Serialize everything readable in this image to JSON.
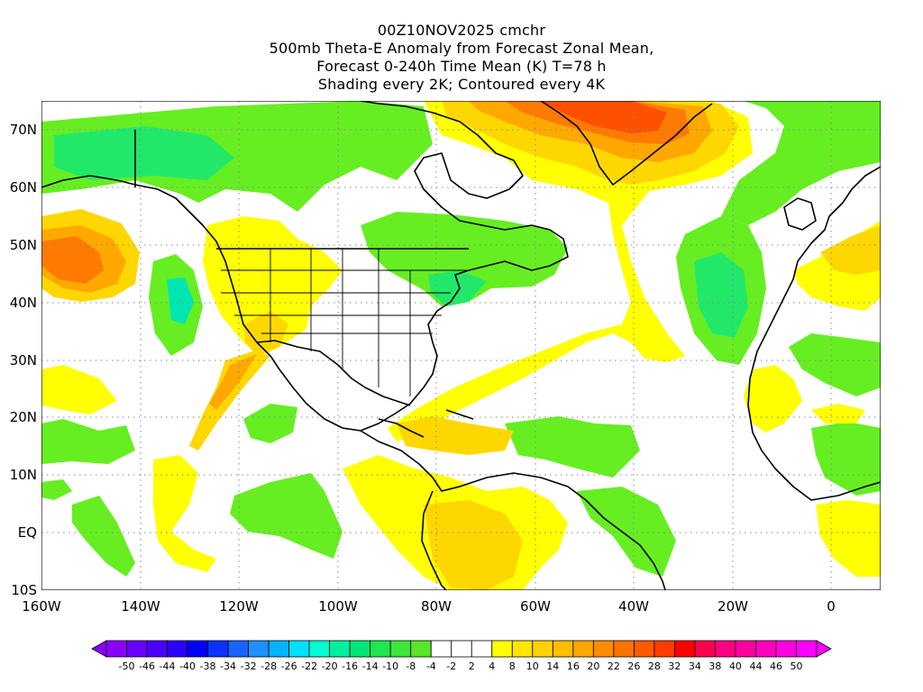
{
  "title": {
    "line1": "00Z10NOV2025 cmchr",
    "line2": "500mb Theta-E Anomaly from Forecast Zonal Mean,",
    "line3": "Forecast 0-240h Time Mean (K) T=78 h",
    "line4": "Shading every 2K; Contoured every 4K"
  },
  "map": {
    "lat_labels": [
      "70N",
      "60N",
      "50N",
      "40N",
      "30N",
      "20N",
      "10N",
      "EQ",
      "10S"
    ],
    "lon_labels": [
      "160W",
      "140W",
      "120W",
      "100W",
      "80W",
      "60W",
      "40W",
      "20W",
      "0"
    ],
    "lon_range": [
      -160,
      10
    ],
    "lat_range": [
      -10,
      75
    ],
    "grid": "dotted"
  },
  "colorbar": {
    "labels": [
      "-50",
      "-46",
      "-44",
      "-40",
      "-38",
      "-34",
      "-32",
      "-28",
      "-26",
      "-22",
      "-20",
      "-16",
      "-14",
      "-10",
      "-8",
      "-4",
      "-2",
      "2",
      "4",
      "8",
      "10",
      "14",
      "16",
      "20",
      "22",
      "26",
      "28",
      "32",
      "34",
      "38",
      "40",
      "44",
      "46",
      "50"
    ],
    "colors": [
      "#8a00ff",
      "#6a00ff",
      "#4b00ff",
      "#2d00ff",
      "#0000ff",
      "#0b32ff",
      "#1964ff",
      "#1e90ff",
      "#00b4ff",
      "#00e0ff",
      "#00ffd4",
      "#00f0a0",
      "#00e676",
      "#1ee650",
      "#3ce63c",
      "#5ae628",
      "#ffffff",
      "#ffffff",
      "#ffffff",
      "#ffff00",
      "#ffe600",
      "#ffd200",
      "#ffbe00",
      "#ffa500",
      "#ff8c00",
      "#ff7300",
      "#ff5a00",
      "#ff3c00",
      "#ff0000",
      "#ff0050",
      "#ff0080",
      "#ff00a0",
      "#ff00c0",
      "#ff00e0",
      "#ff00ff"
    ]
  },
  "colors": {
    "warm_1": "#ffff00",
    "warm_2": "#ffd700",
    "warm_3": "#ffa800",
    "warm_4": "#ff7a00",
    "warm_5": "#ff5000",
    "cool_1": "#66ee22",
    "cool_2": "#22e86a",
    "cool_3": "#00e6b0",
    "neutral": "#ffffff"
  }
}
